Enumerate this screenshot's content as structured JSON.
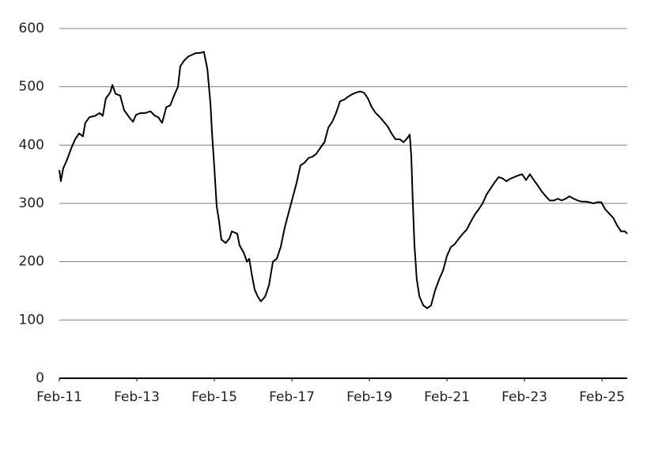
{
  "chart_data": {
    "type": "line",
    "color": "#000000",
    "grid": true,
    "xlim": [
      2011.08,
      2025.73
    ],
    "xticks": [
      {
        "value": 2011.08,
        "label": "Feb-11"
      },
      {
        "value": 2013.08,
        "label": "Feb-13"
      },
      {
        "value": 2015.08,
        "label": "Feb-15"
      },
      {
        "value": 2017.08,
        "label": "Feb-17"
      },
      {
        "value": 2019.08,
        "label": "Feb-19"
      },
      {
        "value": 2021.08,
        "label": "Feb-21"
      },
      {
        "value": 2023.08,
        "label": "Feb-23"
      },
      {
        "value": 2025.08,
        "label": "Feb-25"
      }
    ],
    "ylim": [
      0,
      600
    ],
    "yticks": [
      0,
      100,
      200,
      300,
      400,
      500,
      600
    ],
    "x": [
      2011.08,
      2011.12,
      2011.18,
      2011.28,
      2011.39,
      2011.49,
      2011.59,
      2011.69,
      2011.75,
      2011.86,
      2012.0,
      2012.12,
      2012.2,
      2012.28,
      2012.39,
      2012.45,
      2012.53,
      2012.65,
      2012.75,
      2012.88,
      2012.98,
      2013.06,
      2013.18,
      2013.3,
      2013.43,
      2013.55,
      2013.63,
      2013.73,
      2013.84,
      2013.94,
      2014.04,
      2014.14,
      2014.2,
      2014.3,
      2014.41,
      2014.51,
      2014.61,
      2014.71,
      2014.81,
      2014.9,
      2014.98,
      2015.02,
      2015.08,
      2015.14,
      2015.2,
      2015.26,
      2015.37,
      2015.47,
      2015.53,
      2015.67,
      2015.73,
      2015.84,
      2015.92,
      2015.98,
      2016.04,
      2016.12,
      2016.2,
      2016.28,
      2016.39,
      2016.49,
      2016.59,
      2016.69,
      2016.79,
      2016.9,
      2017.0,
      2017.1,
      2017.2,
      2017.3,
      2017.41,
      2017.51,
      2017.61,
      2017.71,
      2017.81,
      2017.92,
      2018.02,
      2018.12,
      2018.22,
      2018.32,
      2018.43,
      2018.53,
      2018.63,
      2018.73,
      2018.84,
      2018.94,
      2019.04,
      2019.14,
      2019.24,
      2019.35,
      2019.45,
      2019.55,
      2019.65,
      2019.75,
      2019.86,
      2019.96,
      2020.06,
      2020.12,
      2020.16,
      2020.2,
      2020.24,
      2020.3,
      2020.37,
      2020.47,
      2020.57,
      2020.67,
      2020.77,
      2020.88,
      2020.98,
      2021.08,
      2021.18,
      2021.28,
      2021.39,
      2021.49,
      2021.59,
      2021.69,
      2021.79,
      2021.9,
      2022.0,
      2022.1,
      2022.2,
      2022.3,
      2022.41,
      2022.51,
      2022.61,
      2022.71,
      2022.81,
      2022.92,
      2023.02,
      2023.12,
      2023.22,
      2023.32,
      2023.43,
      2023.53,
      2023.63,
      2023.73,
      2023.84,
      2023.94,
      2024.04,
      2024.14,
      2024.24,
      2024.35,
      2024.45,
      2024.55,
      2024.65,
      2024.75,
      2024.86,
      2024.96,
      2025.06,
      2025.16,
      2025.26,
      2025.37,
      2025.47,
      2025.57,
      2025.67,
      2025.73
    ],
    "values": [
      357,
      338,
      360,
      375,
      395,
      410,
      420,
      415,
      438,
      448,
      450,
      455,
      450,
      480,
      490,
      503,
      488,
      485,
      460,
      448,
      440,
      452,
      455,
      455,
      458,
      450,
      448,
      438,
      465,
      468,
      485,
      500,
      535,
      545,
      552,
      555,
      558,
      558,
      560,
      530,
      470,
      420,
      360,
      295,
      270,
      238,
      232,
      240,
      252,
      248,
      228,
      215,
      200,
      205,
      180,
      152,
      140,
      132,
      140,
      160,
      200,
      205,
      225,
      260,
      285,
      310,
      335,
      365,
      370,
      378,
      380,
      385,
      395,
      405,
      430,
      440,
      455,
      475,
      478,
      483,
      487,
      490,
      492,
      490,
      480,
      465,
      455,
      448,
      440,
      432,
      420,
      410,
      410,
      405,
      412,
      418,
      380,
      300,
      230,
      170,
      140,
      125,
      120,
      125,
      150,
      170,
      185,
      210,
      225,
      230,
      240,
      248,
      255,
      268,
      280,
      290,
      300,
      315,
      325,
      335,
      345,
      343,
      338,
      342,
      345,
      348,
      350,
      340,
      350,
      340,
      330,
      320,
      312,
      305,
      305,
      308,
      305,
      308,
      312,
      308,
      305,
      303,
      303,
      302,
      300,
      302,
      302,
      290,
      283,
      275,
      262,
      252,
      252,
      248
    ]
  }
}
